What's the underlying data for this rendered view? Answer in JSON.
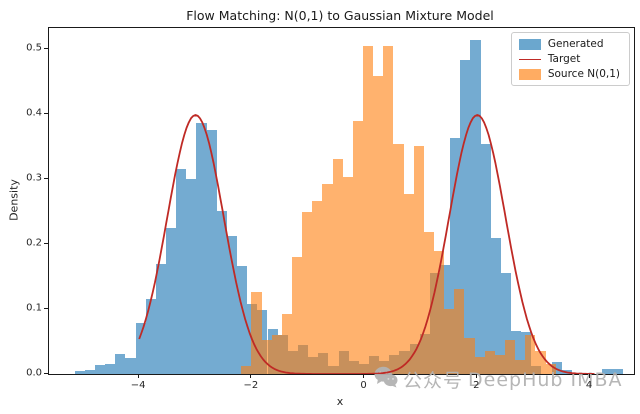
{
  "figure": {
    "title": "Flow Matching: N(0,1) to Gaussian Mixture Model"
  },
  "chart_data": {
    "type": "bar",
    "subtype": "histogram-with-density-line",
    "title": "Flow Matching: N(0,1) to Gaussian Mixture Model",
    "xlabel": "x",
    "ylabel": "Density",
    "xlim": [
      -5.6,
      4.78
    ],
    "ylim": [
      0,
      0.533
    ],
    "grid": false,
    "xticks": [
      {
        "v": -4,
        "label": "−4"
      },
      {
        "v": -2,
        "label": "−2"
      },
      {
        "v": 0,
        "label": "0"
      },
      {
        "v": 2,
        "label": "2"
      },
      {
        "v": 4,
        "label": "4"
      }
    ],
    "yticks": [
      {
        "v": 0.0,
        "label": "0.0"
      },
      {
        "v": 0.1,
        "label": "0.1"
      },
      {
        "v": 0.2,
        "label": "0.2"
      },
      {
        "v": 0.3,
        "label": "0.3"
      },
      {
        "v": 0.4,
        "label": "0.4"
      },
      {
        "v": 0.5,
        "label": "0.5"
      }
    ],
    "legend": {
      "position": "upper right",
      "items": [
        "Generated",
        "Target",
        "Source N(0,1)"
      ]
    },
    "series": [
      {
        "name": "Generated",
        "type": "hist",
        "color": "rgba(31,119,180,0.62)",
        "legend_color": "#6ba7ce",
        "bin_start": -5.143,
        "bin_width": 0.18,
        "heights": [
          0.004,
          0.006,
          0.014,
          0.016,
          0.031,
          0.025,
          0.079,
          0.115,
          0.17,
          0.225,
          0.316,
          0.3,
          0.387,
          0.376,
          0.251,
          0.213,
          0.167,
          0.108,
          0.098,
          0.069,
          0.06,
          0.036,
          0.044,
          0.026,
          0.033,
          0.013,
          0.035,
          0.02,
          0.015,
          0.028,
          0.02,
          0.03,
          0.035,
          0.046,
          0.062,
          0.155,
          0.168,
          0.363,
          0.483,
          0.514,
          0.355,
          0.21,
          0.155,
          0.066,
          0.064,
          0.012,
          0.0,
          0.019,
          0.006,
          0.0,
          0.0,
          0.0,
          0.008,
          0.008
        ]
      },
      {
        "name": "Target",
        "type": "line",
        "color": "#bf2a25",
        "line_width": 1.8,
        "curve": {
          "kind": "gmm",
          "means": [
            -3,
            2
          ],
          "sigmas": [
            0.5,
            0.5
          ],
          "weights": [
            0.5,
            0.5
          ],
          "x_range": [
            -4,
            4.1
          ],
          "peak": 0.399
        }
      },
      {
        "name": "Source N(0,1)",
        "type": "hist",
        "color": "rgba(255,127,14,0.60)",
        "legend_color": "#ffac62",
        "bin_start": -2.189,
        "bin_width": 0.18,
        "heights": [
          0.012,
          0.126,
          0.052,
          0.06,
          0.092,
          0.18,
          0.249,
          0.267,
          0.293,
          0.331,
          0.303,
          0.39,
          0.505,
          0.459,
          0.505,
          0.354,
          0.277,
          0.351,
          0.218,
          0.19,
          0.1,
          0.131,
          0.056,
          0.026,
          0.036,
          0.03,
          0.052,
          0.022,
          0.06,
          0.035,
          0.015
        ]
      }
    ]
  },
  "watermark": {
    "icon": "wechat-icon",
    "text_cn": "公众号",
    "text_en": "DeepHub IMBA",
    "color": "#b3b3b3"
  }
}
